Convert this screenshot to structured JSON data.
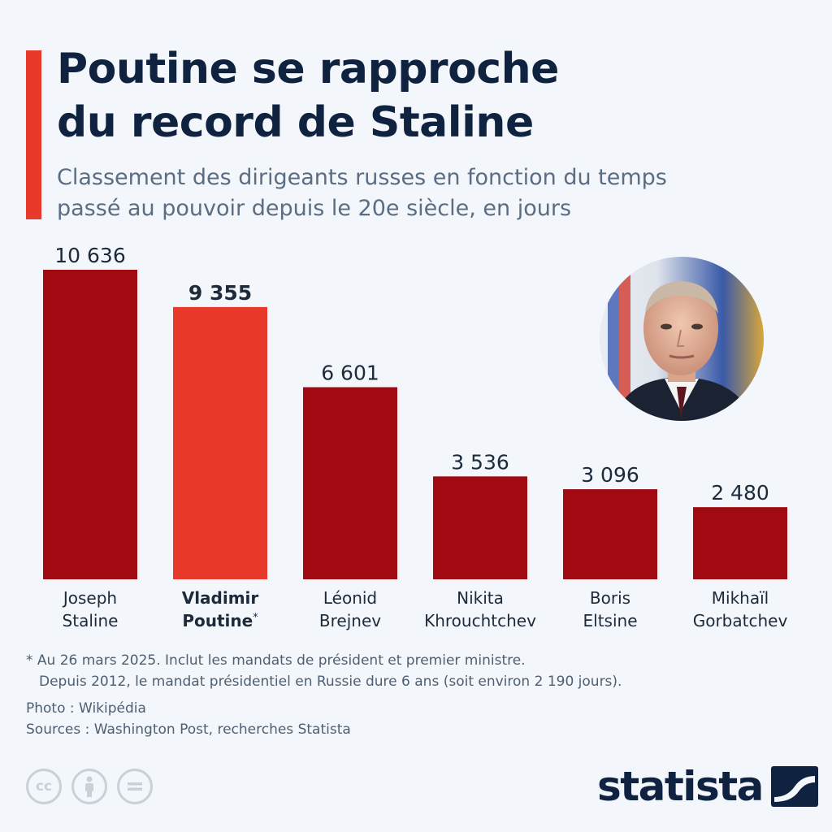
{
  "header": {
    "title_lines": [
      "Poutine se rapproche",
      "du record de Staline"
    ],
    "subtitle_lines": [
      "Classement des dirigeants russes en fonction du temps",
      "passé au pouvoir depuis le 20e siècle, en jours"
    ]
  },
  "chart_data": {
    "type": "bar",
    "title": "Poutine se rapproche du record de Staline",
    "subtitle": "Classement des dirigeants russes en fonction du temps passé au pouvoir depuis le 20e siècle, en jours",
    "categories": [
      {
        "lines": [
          "Joseph",
          "Staline"
        ],
        "highlight": false,
        "asterisk": false
      },
      {
        "lines": [
          "Vladimir",
          "Poutine"
        ],
        "highlight": true,
        "asterisk": true
      },
      {
        "lines": [
          "Léonid",
          "Brejnev"
        ],
        "highlight": false,
        "asterisk": false
      },
      {
        "lines": [
          "Nikita",
          "Khrouchtchev"
        ],
        "highlight": false,
        "asterisk": false
      },
      {
        "lines": [
          "Boris",
          "Eltsine"
        ],
        "highlight": false,
        "asterisk": false
      },
      {
        "lines": [
          "Mikhaïl",
          "Gorbatchev"
        ],
        "highlight": false,
        "asterisk": false
      }
    ],
    "values": [
      10636,
      9355,
      6601,
      3536,
      3096,
      2480
    ],
    "value_labels": [
      "10 636",
      "9 355",
      "6 601",
      "3 536",
      "3 096",
      "2 480"
    ],
    "ylim": [
      0,
      10636
    ],
    "grid": false,
    "colors": {
      "default": "#a10a12",
      "highlight": "#e8392a"
    }
  },
  "photo": {
    "caption": "portrait-of-vladimir-putin"
  },
  "footer": {
    "note_line1": "* Au 26 mars 2025. Inclut les mandats de président et premier ministre.",
    "note_line2": "Depuis 2012, le mandat présidentiel en Russie dure 6 ans (soit environ 2 190 jours).",
    "photo_credit": "Photo : Wikipédia",
    "sources": "Sources : Washington Post, recherches Statista",
    "brand": "statista"
  }
}
